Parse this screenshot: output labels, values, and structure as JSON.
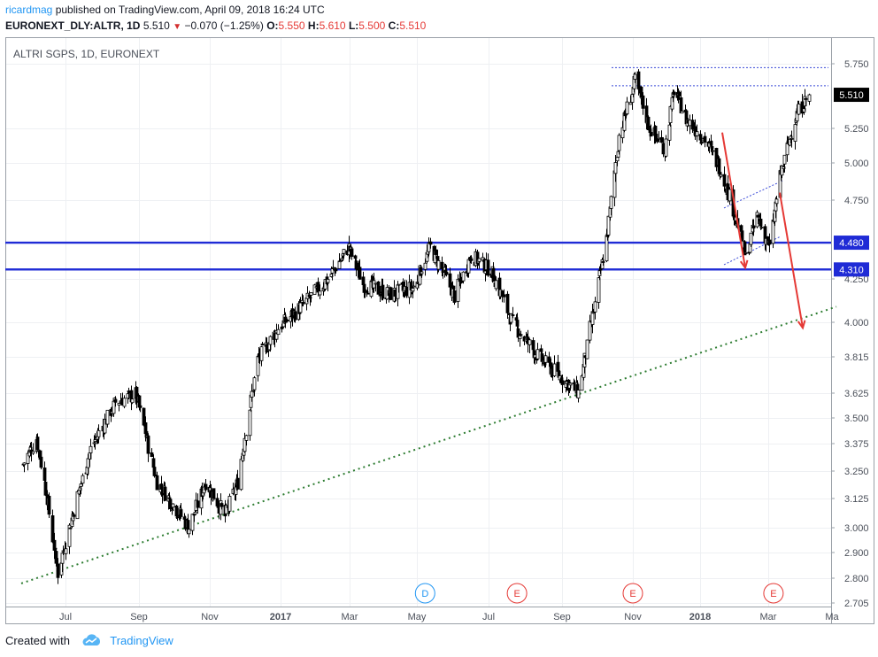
{
  "header": {
    "author": "ricardmag",
    "published_text": "published on TradingView.com, April 09, 2018 16:24 UTC",
    "symbol": "EURONEXT_DLY:ALTR, 1D",
    "last": "5.510",
    "change_arrow": "▼",
    "change": "−0.070 (−1.25%)",
    "o_label": "O:",
    "o_value": "5.550",
    "h_label": "H:",
    "h_value": "5.610",
    "l_label": "L:",
    "l_value": "5.500",
    "c_label": "C:",
    "c_value": "5.510"
  },
  "footer": {
    "created_with": "Created with",
    "brand": "TradingView",
    "logo_icon": "tradingview-cloud-icon"
  },
  "chart_data": {
    "type": "candlestick",
    "title": "ALTRI SGPS, 1D, EURONEXT",
    "y_ticks": [
      "5.750",
      "5.250",
      "5.000",
      "4.750",
      "4.250",
      "4.000",
      "3.815",
      "3.625",
      "3.500",
      "3.375",
      "3.250",
      "3.125",
      "3.000",
      "2.900",
      "2.800",
      "2.705"
    ],
    "x_ticks": [
      "Jul",
      "Sep",
      "Nov",
      "2017",
      "Mar",
      "May",
      "Jul",
      "Sep",
      "Nov",
      "2018",
      "Mar",
      "Ma"
    ],
    "x_ticks_bold": [
      "2017",
      "2018"
    ],
    "price_labels": [
      {
        "text": "5.510",
        "value": 5.51,
        "style": "last"
      },
      {
        "text": "4.480",
        "value": 4.48,
        "style": "level"
      },
      {
        "text": "4.310",
        "value": 4.31,
        "style": "level"
      }
    ],
    "horizontal_levels": [
      4.48,
      4.31
    ],
    "resistance_dotted": [
      5.72,
      5.58
    ],
    "event_markers": [
      "D",
      "E",
      "E",
      "E"
    ],
    "approx_close_path": [
      {
        "date": "2016-05-26",
        "close": 3.28
      },
      {
        "date": "2016-06-06",
        "close": 3.4
      },
      {
        "date": "2016-06-13",
        "close": 3.2
      },
      {
        "date": "2016-06-24",
        "close": 2.82
      },
      {
        "date": "2016-07-04",
        "close": 3.0
      },
      {
        "date": "2016-07-22",
        "close": 3.35
      },
      {
        "date": "2016-08-12",
        "close": 3.58
      },
      {
        "date": "2016-08-29",
        "close": 3.62
      },
      {
        "date": "2016-09-16",
        "close": 3.2
      },
      {
        "date": "2016-10-14",
        "close": 3.0
      },
      {
        "date": "2016-10-28",
        "close": 3.2
      },
      {
        "date": "2016-11-14",
        "close": 3.05
      },
      {
        "date": "2016-11-25",
        "close": 3.2
      },
      {
        "date": "2016-12-12",
        "close": 3.8
      },
      {
        "date": "2016-12-30",
        "close": 3.97
      },
      {
        "date": "2017-01-20",
        "close": 4.1
      },
      {
        "date": "2017-02-10",
        "close": 4.25
      },
      {
        "date": "2017-02-28",
        "close": 4.45
      },
      {
        "date": "2017-03-13",
        "close": 4.22
      },
      {
        "date": "2017-04-06",
        "close": 4.16
      },
      {
        "date": "2017-04-28",
        "close": 4.2
      },
      {
        "date": "2017-05-12",
        "close": 4.45
      },
      {
        "date": "2017-06-02",
        "close": 4.15
      },
      {
        "date": "2017-06-16",
        "close": 4.4
      },
      {
        "date": "2017-07-03",
        "close": 4.3
      },
      {
        "date": "2017-07-21",
        "close": 4.0
      },
      {
        "date": "2017-08-11",
        "close": 3.82
      },
      {
        "date": "2017-09-01",
        "close": 3.7
      },
      {
        "date": "2017-09-15",
        "close": 3.63
      },
      {
        "date": "2017-09-29",
        "close": 4.1
      },
      {
        "date": "2017-10-10",
        "close": 4.55
      },
      {
        "date": "2017-10-20",
        "close": 5.2
      },
      {
        "date": "2017-11-03",
        "close": 5.62
      },
      {
        "date": "2017-11-16",
        "close": 5.25
      },
      {
        "date": "2017-11-30",
        "close": 5.1
      },
      {
        "date": "2017-12-08",
        "close": 5.55
      },
      {
        "date": "2017-12-19",
        "close": 5.32
      },
      {
        "date": "2018-01-05",
        "close": 5.17
      },
      {
        "date": "2018-01-19",
        "close": 4.95
      },
      {
        "date": "2018-02-02",
        "close": 4.6
      },
      {
        "date": "2018-02-09",
        "close": 4.38
      },
      {
        "date": "2018-02-19",
        "close": 4.65
      },
      {
        "date": "2018-03-02",
        "close": 4.45
      },
      {
        "date": "2018-03-12",
        "close": 4.9
      },
      {
        "date": "2018-03-27",
        "close": 5.35
      },
      {
        "date": "2018-04-09",
        "close": 5.51
      }
    ],
    "grid": true
  }
}
